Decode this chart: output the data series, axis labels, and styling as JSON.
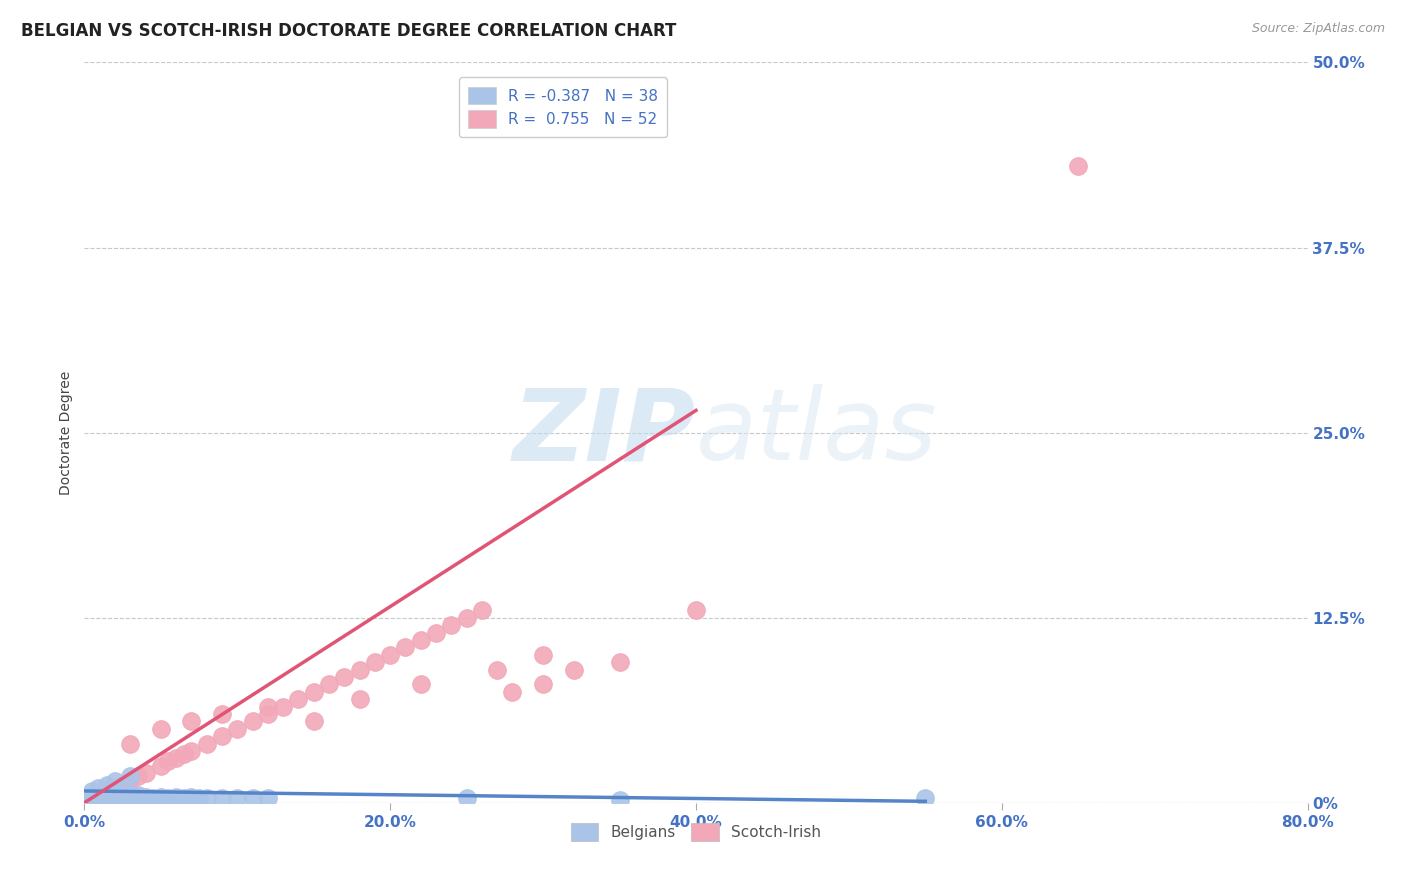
{
  "title": "BELGIAN VS SCOTCH-IRISH DOCTORATE DEGREE CORRELATION CHART",
  "source": "Source: ZipAtlas.com",
  "ylabel": "Doctorate Degree",
  "xlim": [
    0.0,
    0.8
  ],
  "ylim": [
    0.0,
    0.5
  ],
  "xtick_labels": [
    "0.0%",
    "20.0%",
    "40.0%",
    "60.0%",
    "80.0%"
  ],
  "xtick_values": [
    0.0,
    0.2,
    0.4,
    0.6,
    0.8
  ],
  "ytick_values": [
    0.0,
    0.125,
    0.25,
    0.375,
    0.5
  ],
  "right_ytick_labels": [
    "0%",
    "12.5%",
    "25.0%",
    "37.5%",
    "50.0%"
  ],
  "belgian_color": "#aac4e8",
  "scotch_color": "#f2a8b8",
  "belgian_line_color": "#5585c8",
  "scotch_line_color": "#e05575",
  "legend_R_belgian": "R = -0.387",
  "legend_N_belgian": "N = 38",
  "legend_R_scotch": "R =  0.755",
  "legend_N_scotch": "N = 52",
  "watermark_zip": "ZIP",
  "watermark_atlas": "atlas",
  "title_fontsize": 12,
  "axis_label_fontsize": 10,
  "tick_fontsize": 11,
  "legend_fontsize": 11,
  "background_color": "#ffffff",
  "grid_color": "#c8c8c8",
  "axis_color": "#4472c4",
  "title_color": "#222222",
  "belgian_scatter_x": [
    0.005,
    0.008,
    0.01,
    0.012,
    0.015,
    0.018,
    0.02,
    0.022,
    0.025,
    0.028,
    0.03,
    0.032,
    0.035,
    0.038,
    0.04,
    0.045,
    0.05,
    0.055,
    0.06,
    0.065,
    0.07,
    0.075,
    0.08,
    0.09,
    0.1,
    0.11,
    0.12,
    0.005,
    0.007,
    0.009,
    0.015,
    0.02,
    0.03,
    0.25,
    0.35,
    0.02,
    0.03,
    0.55
  ],
  "belgian_scatter_y": [
    0.004,
    0.005,
    0.006,
    0.004,
    0.005,
    0.003,
    0.007,
    0.005,
    0.004,
    0.006,
    0.005,
    0.004,
    0.005,
    0.003,
    0.004,
    0.003,
    0.004,
    0.003,
    0.004,
    0.003,
    0.004,
    0.003,
    0.003,
    0.003,
    0.003,
    0.003,
    0.003,
    0.008,
    0.006,
    0.01,
    0.012,
    0.015,
    0.018,
    0.003,
    0.002,
    0.003,
    0.003,
    0.003
  ],
  "scotch_scatter_x": [
    0.005,
    0.008,
    0.01,
    0.012,
    0.015,
    0.018,
    0.02,
    0.025,
    0.028,
    0.03,
    0.035,
    0.04,
    0.05,
    0.055,
    0.06,
    0.065,
    0.07,
    0.08,
    0.09,
    0.1,
    0.11,
    0.12,
    0.13,
    0.14,
    0.15,
    0.16,
    0.17,
    0.18,
    0.19,
    0.2,
    0.21,
    0.22,
    0.23,
    0.24,
    0.25,
    0.26,
    0.28,
    0.3,
    0.32,
    0.35,
    0.03,
    0.05,
    0.07,
    0.09,
    0.12,
    0.15,
    0.18,
    0.22,
    0.27,
    0.65,
    0.4,
    0.3
  ],
  "scotch_scatter_y": [
    0.003,
    0.005,
    0.006,
    0.007,
    0.008,
    0.009,
    0.01,
    0.012,
    0.013,
    0.015,
    0.018,
    0.02,
    0.025,
    0.028,
    0.03,
    0.033,
    0.035,
    0.04,
    0.045,
    0.05,
    0.055,
    0.06,
    0.065,
    0.07,
    0.075,
    0.08,
    0.085,
    0.09,
    0.095,
    0.1,
    0.105,
    0.11,
    0.115,
    0.12,
    0.125,
    0.13,
    0.075,
    0.08,
    0.09,
    0.095,
    0.04,
    0.05,
    0.055,
    0.06,
    0.065,
    0.055,
    0.07,
    0.08,
    0.09,
    0.43,
    0.13,
    0.1
  ],
  "bel_line_x": [
    0.0,
    0.55
  ],
  "bel_line_y": [
    0.008,
    0.001
  ],
  "sc_line_x": [
    0.0,
    0.4
  ],
  "sc_line_y": [
    0.0,
    0.265
  ]
}
